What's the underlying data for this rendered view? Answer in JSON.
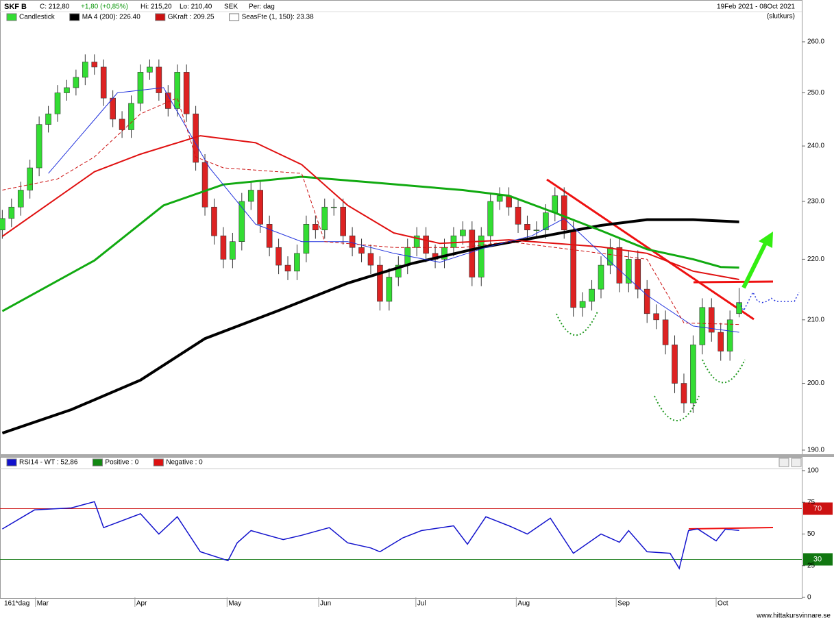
{
  "header": {
    "symbol": "SKF B",
    "close": "C: 212,80",
    "change": "+1,80 (+0,85%)",
    "high": "Hi: 215,20",
    "low": "Lo: 210,40",
    "currency": "SEK",
    "period": "Per: dag",
    "range": "19Feb 2021 - 08Oct 2021",
    "price_kind": "(slutkurs)",
    "bars": "161*dag",
    "site": "www.hittakursvinnare.se"
  },
  "chart_data": [
    {
      "type": "candlestick",
      "name": "Candlestick",
      "up_color": "#33dd33",
      "down_color": "#dd2222",
      "log_scale": true,
      "ylim": [
        189.4,
        264
      ],
      "xlim": [
        -0.5,
        173.6
      ],
      "yticks": [
        {
          "value": 190,
          "label": "190.0"
        },
        {
          "value": 200,
          "label": "200.0"
        },
        {
          "value": 210,
          "label": "210.0"
        },
        {
          "value": 220,
          "label": "220.0"
        },
        {
          "value": 230,
          "label": "230.0"
        },
        {
          "value": 240,
          "label": "240.0"
        },
        {
          "value": 250,
          "label": "250.0"
        },
        {
          "value": 260,
          "label": "260.0"
        }
      ],
      "x": [
        0,
        2,
        4,
        6,
        8,
        10,
        12,
        14,
        16,
        18,
        20,
        22,
        24,
        26,
        28,
        30,
        32,
        34,
        36,
        38,
        40,
        42,
        44,
        46,
        48,
        50,
        52,
        54,
        56,
        58,
        60,
        62,
        64,
        66,
        68,
        70,
        72,
        74,
        76,
        78,
        80,
        82,
        84,
        86,
        88,
        90,
        92,
        94,
        96,
        98,
        100,
        102,
        104,
        106,
        108,
        110,
        112,
        114,
        116,
        118,
        120,
        122,
        124,
        126,
        128,
        130,
        132,
        134,
        136,
        138,
        140,
        142,
        144,
        146,
        148,
        150,
        152,
        154,
        156,
        158,
        160
      ],
      "open": [
        225,
        227,
        229,
        232,
        236,
        244,
        246,
        250,
        251,
        253,
        256,
        255,
        249,
        245,
        243,
        248,
        254,
        255,
        250,
        247,
        254,
        246,
        237,
        229,
        224,
        220,
        223,
        230,
        232,
        226,
        222,
        219,
        218,
        221,
        226,
        225,
        229,
        229,
        224,
        222,
        221,
        219,
        213,
        217,
        219,
        222,
        224,
        221,
        220,
        222,
        224,
        225,
        217,
        224,
        230,
        231,
        229,
        226,
        225,
        225,
        228,
        231,
        225,
        212,
        213,
        215,
        219,
        222,
        216,
        220,
        215,
        211,
        210,
        206,
        200,
        197,
        206,
        212,
        208,
        205,
        211
      ],
      "high": [
        228.5,
        230.5,
        233.5,
        237.5,
        245.5,
        247.5,
        251.5,
        252.5,
        254.5,
        257.5,
        257.5,
        256.5,
        250.5,
        246.5,
        249.5,
        255.5,
        256.5,
        256.5,
        251.5,
        255.5,
        255.5,
        247.5,
        238.5,
        230.5,
        225.5,
        224.5,
        231.5,
        233.5,
        233.5,
        227.5,
        223.5,
        220.5,
        222.5,
        227.5,
        227.5,
        230.5,
        230.5,
        230.5,
        225.5,
        223.5,
        222.5,
        220.5,
        218.5,
        220.5,
        223.5,
        225.5,
        225.5,
        222.5,
        223.5,
        225.5,
        226.5,
        226.5,
        225.5,
        231.5,
        232.5,
        232.5,
        230.5,
        227.5,
        226.5,
        229.5,
        232.5,
        232.5,
        226.5,
        214.5,
        216.5,
        220.5,
        223.5,
        223.5,
        221.5,
        221.5,
        216.5,
        212.5,
        211.5,
        207.5,
        201.5,
        207.5,
        213.5,
        213.5,
        209.5,
        211.5,
        215.2
      ],
      "low": [
        223.5,
        225.5,
        227.5,
        230.5,
        234.5,
        242.5,
        244.5,
        248.5,
        249.5,
        251.5,
        253.5,
        247.5,
        243.5,
        241.5,
        241.5,
        246.5,
        252.5,
        248.5,
        245.5,
        245.5,
        244.5,
        235.5,
        227.5,
        222.5,
        218.5,
        218.5,
        221.5,
        228.5,
        224.5,
        220.5,
        217.5,
        216.5,
        216.5,
        219.5,
        223.5,
        223.5,
        227.5,
        222.5,
        220.5,
        219.5,
        217.5,
        211.5,
        211.5,
        215.5,
        217.5,
        220.5,
        219.5,
        218.5,
        218.5,
        220.5,
        222.5,
        215.5,
        215.5,
        222.5,
        228.5,
        227.5,
        224.5,
        223.5,
        223.5,
        223.5,
        226.5,
        223.5,
        210.5,
        210.5,
        211.5,
        213.5,
        217.5,
        214.5,
        214.5,
        213.5,
        209.5,
        208.5,
        204.5,
        198.5,
        195.5,
        195.5,
        204.5,
        206.5,
        203.5,
        203.5,
        210.4
      ],
      "close": [
        227,
        229,
        232,
        236,
        244,
        246,
        250,
        251,
        253,
        256,
        255,
        249,
        245,
        243,
        248,
        254,
        255,
        250,
        247,
        254,
        246,
        237,
        229,
        224,
        220,
        223,
        230,
        232,
        226,
        222,
        219,
        218,
        221,
        226,
        225,
        229,
        229,
        224,
        222,
        221,
        219,
        213,
        217,
        219,
        222,
        224,
        221,
        220,
        222,
        224,
        225,
        217,
        224,
        230,
        231,
        229,
        226,
        225,
        225,
        228,
        231,
        225,
        212,
        213,
        215,
        219,
        222,
        216,
        220,
        215,
        211,
        210,
        206,
        200,
        197,
        206,
        212,
        208,
        205,
        210,
        212.8
      ],
      "series": [
        {
          "name": "MA 4 (200): 226.40",
          "color": "#000000",
          "width": 4,
          "line_style": "solid",
          "x": [
            0,
            15,
            30,
            44,
            60,
            75,
            89,
            104,
            118,
            130,
            140,
            150,
            160
          ],
          "values": [
            192.5,
            196,
            200.5,
            207,
            211.5,
            216,
            219.3,
            222,
            224,
            225.8,
            226.8,
            226.8,
            226.4
          ]
        },
        {
          "color": "#11aa11",
          "width": 3,
          "line_style": "solid",
          "x": [
            0,
            20,
            35,
            48,
            65,
            80,
            100,
            110,
            120,
            130,
            140,
            150,
            156,
            160
          ],
          "values": [
            211.4,
            219.8,
            229.3,
            233,
            234.4,
            233.4,
            232,
            231,
            228,
            224.9,
            221.7,
            220,
            218.7,
            218.6
          ]
        },
        {
          "color": "#e01010",
          "width": 2,
          "line_style": "solid",
          "x": [
            0,
            20,
            30,
            43,
            55,
            65,
            75,
            85,
            95,
            110,
            120,
            130,
            140,
            150,
            160
          ],
          "values": [
            223.9,
            235.3,
            238.5,
            241.9,
            240.6,
            236.6,
            229.3,
            224.5,
            222.7,
            223.3,
            222.7,
            222.1,
            221,
            218,
            216.6
          ]
        },
        {
          "color": "#2233dd",
          "width": 1,
          "line_style": "solid",
          "x": [
            10,
            25,
            35,
            45,
            55,
            65,
            75,
            85,
            95,
            105,
            115,
            122,
            130,
            140,
            150,
            160
          ],
          "values": [
            235,
            250,
            251,
            236,
            226,
            223,
            223,
            221,
            219.5,
            222,
            224,
            227,
            221,
            214,
            209,
            208
          ]
        },
        {
          "name": "GKraft : 209.25",
          "color": "#cc1111",
          "width": 1,
          "line_style": "dashed",
          "x": [
            0,
            12,
            20,
            30,
            38,
            42,
            48,
            65,
            70,
            85,
            100,
            110,
            120,
            130,
            140,
            148,
            160
          ],
          "values": [
            232,
            234,
            238,
            246,
            249,
            238,
            236,
            235,
            223,
            222,
            222,
            223,
            222,
            221,
            220,
            209.5,
            209.25
          ]
        },
        {
          "name": "SeasFte (1, 150): 23.38",
          "color": "#2233dd",
          "width": 1.5,
          "line_style": "dotted",
          "x": [
            160,
            161,
            162,
            163,
            164,
            165,
            166,
            167,
            168,
            170,
            172,
            173
          ],
          "values": [
            212.8,
            211.5,
            213,
            214.5,
            213,
            212.8,
            213,
            213.5,
            213,
            213,
            213,
            214.5
          ]
        }
      ]
    },
    {
      "type": "line",
      "ylim": [
        0,
        101.6
      ],
      "xlim": [
        -0.5,
        173.6
      ],
      "yticks": [
        0,
        25,
        50,
        75,
        100
      ],
      "xticks": [
        {
          "value": 7.2,
          "label": "Mar"
        },
        {
          "value": 28.8,
          "label": "Apr"
        },
        {
          "value": 48.8,
          "label": "May"
        },
        {
          "value": 68.7,
          "label": "Jun"
        },
        {
          "value": 89.8,
          "label": "Jul"
        },
        {
          "value": 111.6,
          "label": "Aug"
        },
        {
          "value": 133.3,
          "label": "Sep"
        },
        {
          "value": 155,
          "label": "Oct"
        }
      ],
      "hlines": [
        {
          "value": 70,
          "color": "#cc1111"
        },
        {
          "value": 30,
          "color": "#117711"
        }
      ],
      "legend": [
        {
          "name": "Positive : 0",
          "color": "#118811"
        },
        {
          "name": "Negative : 0",
          "color": "#dd1111"
        }
      ],
      "series": [
        {
          "name": "RSI14 - WT : 52,86",
          "color": "#1111cc",
          "x": [
            0,
            7,
            15,
            20,
            22,
            30,
            34,
            38,
            43,
            49,
            51,
            54,
            61,
            65,
            71,
            75,
            80,
            82,
            87,
            91,
            98,
            101,
            105,
            110,
            114,
            119,
            124,
            130,
            134,
            136,
            140,
            145,
            147,
            149,
            151,
            155,
            157,
            160
          ],
          "values": [
            54,
            69,
            70.6,
            75.5,
            55,
            66,
            50,
            63.6,
            36,
            29,
            43,
            52.7,
            45.6,
            49,
            55,
            43,
            39,
            36,
            47,
            52.7,
            56.5,
            42,
            63.6,
            56.5,
            50,
            62.5,
            34.8,
            50,
            43.5,
            52.7,
            36,
            34.8,
            22.8,
            52.7,
            54,
            44.6,
            53.8,
            52.86
          ]
        }
      ]
    }
  ]
}
